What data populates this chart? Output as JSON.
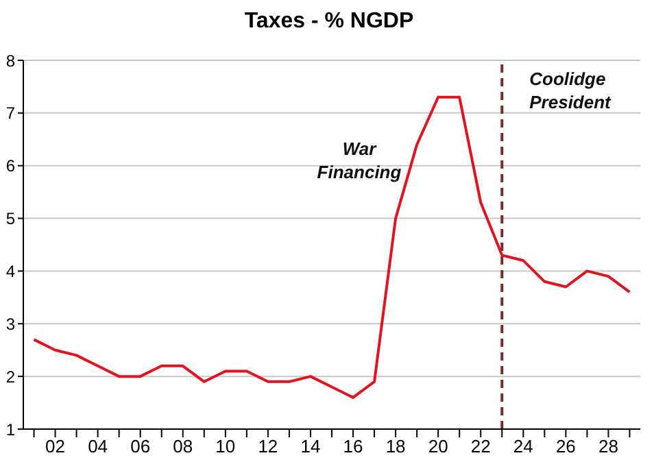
{
  "chart_data": {
    "type": "line",
    "title": "Taxes - % NGDP",
    "x": [
      1901,
      1902,
      1903,
      1904,
      1905,
      1906,
      1907,
      1908,
      1909,
      1910,
      1911,
      1912,
      1913,
      1914,
      1915,
      1916,
      1917,
      1918,
      1919,
      1920,
      1921,
      1922,
      1923,
      1924,
      1925,
      1926,
      1927,
      1928,
      1929
    ],
    "series": [
      {
        "color": "#e0141e",
        "values": [
          2.7,
          2.5,
          2.4,
          2.2,
          2.0,
          2.0,
          2.2,
          2.2,
          1.9,
          2.1,
          2.1,
          1.9,
          1.9,
          2.0,
          1.8,
          1.6,
          1.9,
          5.0,
          6.4,
          7.3,
          7.3,
          5.3,
          4.3,
          4.2,
          3.8,
          3.7,
          4.0,
          3.9,
          3.6
        ]
      }
    ],
    "xlim": [
      1900.5,
      1929.5
    ],
    "xticks": [
      {
        "value": 1901,
        "label": null
      },
      {
        "value": 1902,
        "label": "02"
      },
      {
        "value": 1903,
        "label": null
      },
      {
        "value": 1904,
        "label": "04"
      },
      {
        "value": 1905,
        "label": null
      },
      {
        "value": 1906,
        "label": "06"
      },
      {
        "value": 1907,
        "label": null
      },
      {
        "value": 1908,
        "label": "08"
      },
      {
        "value": 1909,
        "label": null
      },
      {
        "value": 1910,
        "label": "10"
      },
      {
        "value": 1911,
        "label": null
      },
      {
        "value": 1912,
        "label": "12"
      },
      {
        "value": 1913,
        "label": null
      },
      {
        "value": 1914,
        "label": "14"
      },
      {
        "value": 1915,
        "label": null
      },
      {
        "value": 1916,
        "label": "16"
      },
      {
        "value": 1917,
        "label": null
      },
      {
        "value": 1918,
        "label": "18"
      },
      {
        "value": 1919,
        "label": null
      },
      {
        "value": 1920,
        "label": "20"
      },
      {
        "value": 1921,
        "label": null
      },
      {
        "value": 1922,
        "label": "22"
      },
      {
        "value": 1923,
        "label": null
      },
      {
        "value": 1924,
        "label": "24"
      },
      {
        "value": 1925,
        "label": null
      },
      {
        "value": 1926,
        "label": "26"
      },
      {
        "value": 1927,
        "label": null
      },
      {
        "value": 1928,
        "label": "28"
      },
      {
        "value": 1929,
        "label": null
      }
    ],
    "ylim": [
      1,
      8
    ],
    "yticks": [
      1,
      2,
      3,
      4,
      5,
      6,
      7,
      8
    ],
    "grid": "y",
    "marker": "none",
    "line_style": "solid",
    "ref_lines": [
      {
        "axis": "x",
        "value": 1923,
        "label": "Coolidge President",
        "color": "#7b2a2a",
        "line_style": "dashed"
      }
    ],
    "annotations": [
      "War Financing"
    ]
  }
}
